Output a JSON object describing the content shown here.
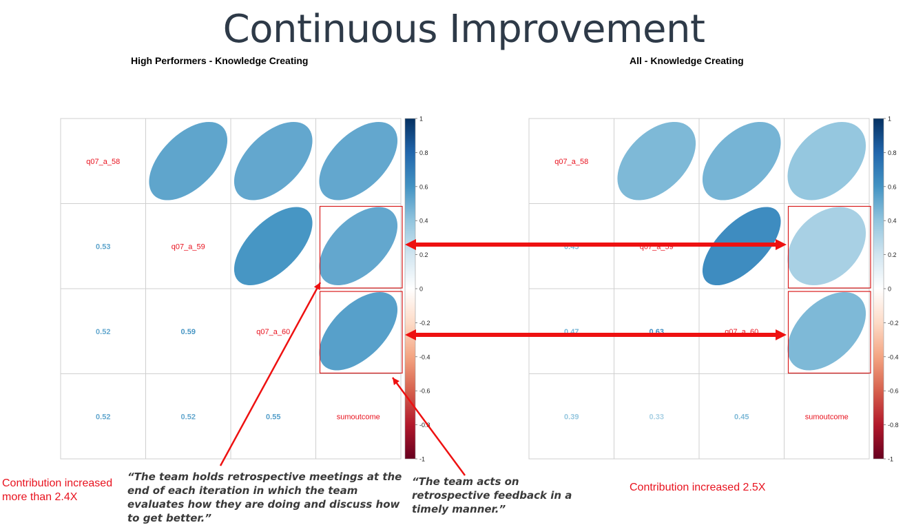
{
  "title": "Continuous Improvement",
  "annotations": {
    "quote_left": "“The team holds retrospective meetings at the end of each iteration in which the team evaluates how they are doing and discuss how to get better.”",
    "quote_right": "“The team acts on retrospective feedback in a timely manner.”",
    "note_left": "Contribution increased more than 2.4X",
    "note_right": "Contribution increased 2.5X"
  },
  "colors": {
    "label_red": "#e8121e",
    "arrow_red": "#ee1111",
    "grid": "#cfcfcf"
  },
  "chart_data": [
    {
      "type": "heatmap",
      "title": "High Performers - Knowledge Creating",
      "variables": [
        "q07_a_58",
        "q07_a_59",
        "q07_a_60",
        "sumoutcome"
      ],
      "correlations": [
        {
          "row": "q07_a_59",
          "col": "q07_a_58",
          "value": 0.53
        },
        {
          "row": "q07_a_60",
          "col": "q07_a_58",
          "value": 0.52
        },
        {
          "row": "q07_a_60",
          "col": "q07_a_59",
          "value": 0.59
        },
        {
          "row": "sumoutcome",
          "col": "q07_a_58",
          "value": 0.52
        },
        {
          "row": "sumoutcome",
          "col": "q07_a_59",
          "value": 0.52
        },
        {
          "row": "sumoutcome",
          "col": "q07_a_60",
          "value": 0.55
        }
      ],
      "colorbar": {
        "range": [
          -1,
          1
        ],
        "ticks": [
          "1",
          "0.8",
          "0.6",
          "0.4",
          "0.2",
          "0",
          "-0.2",
          "-0.4",
          "-0.6",
          "-0.8",
          "-1"
        ]
      },
      "highlighted_cells": [
        {
          "row": "q07_a_59",
          "col": "sumoutcome"
        },
        {
          "row": "q07_a_60",
          "col": "sumoutcome"
        }
      ]
    },
    {
      "type": "heatmap",
      "title": "All - Knowledge Creating",
      "variables": [
        "q07_a_58",
        "q07_a_59",
        "q07_a_60",
        "sumoutcome"
      ],
      "correlations": [
        {
          "row": "q07_a_59",
          "col": "q07_a_58",
          "value": 0.45
        },
        {
          "row": "q07_a_60",
          "col": "q07_a_58",
          "value": 0.47
        },
        {
          "row": "q07_a_60",
          "col": "q07_a_59",
          "value": 0.63
        },
        {
          "row": "sumoutcome",
          "col": "q07_a_58",
          "value": 0.39
        },
        {
          "row": "sumoutcome",
          "col": "q07_a_59",
          "value": 0.33
        },
        {
          "row": "sumoutcome",
          "col": "q07_a_60",
          "value": 0.45
        }
      ],
      "colorbar": {
        "range": [
          -1,
          1
        ],
        "ticks": [
          "1",
          "0.8",
          "0.6",
          "0.4",
          "0.2",
          "0",
          "-0.2",
          "-0.4",
          "-0.6",
          "-0.8",
          "-1"
        ]
      },
      "highlighted_cells": [
        {
          "row": "q07_a_59",
          "col": "sumoutcome"
        },
        {
          "row": "q07_a_60",
          "col": "sumoutcome"
        }
      ]
    }
  ]
}
